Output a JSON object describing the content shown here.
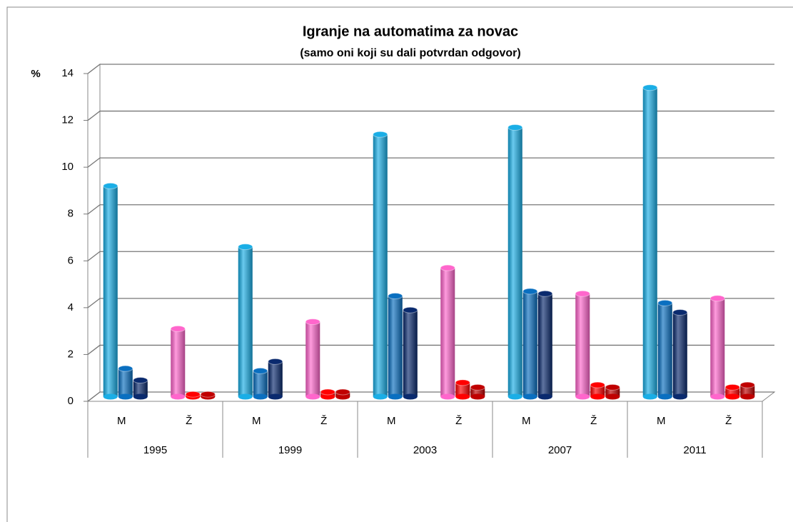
{
  "chart_data": {
    "type": "bar3d",
    "title": "Igranje na automatima za novac",
    "subtitle": "(samo oni koji su dali potvrdan odgovor)",
    "y_label": "%",
    "groups": [
      "1995",
      "1999",
      "2003",
      "2007",
      "2011"
    ],
    "categories": [
      "M",
      "Ž",
      "M",
      "Ž",
      "M",
      "Ž",
      "M",
      "Ž",
      "M",
      "Ž"
    ],
    "series": [
      {
        "colors": [
          "#1aaee6",
          "#ff66cc"
        ],
        "values": [
          9.0,
          2.9,
          6.4,
          3.2,
          11.2,
          5.5,
          11.5,
          4.4,
          13.2,
          4.2
        ]
      },
      {
        "colors": [
          "#0a6fc0",
          "#ff0000"
        ],
        "values": [
          1.2,
          0.1,
          1.1,
          0.2,
          4.3,
          0.6,
          4.5,
          0.5,
          4.0,
          0.4
        ]
      },
      {
        "colors": [
          "#0a2a6e",
          "#c00000"
        ],
        "values": [
          0.7,
          0.1,
          1.5,
          0.2,
          3.7,
          0.4,
          4.4,
          0.4,
          3.6,
          0.5
        ]
      }
    ],
    "ylim": [
      0,
      14
    ],
    "yticks": [
      0,
      2,
      4,
      6,
      8,
      10,
      12,
      14
    ],
    "grid": true
  }
}
